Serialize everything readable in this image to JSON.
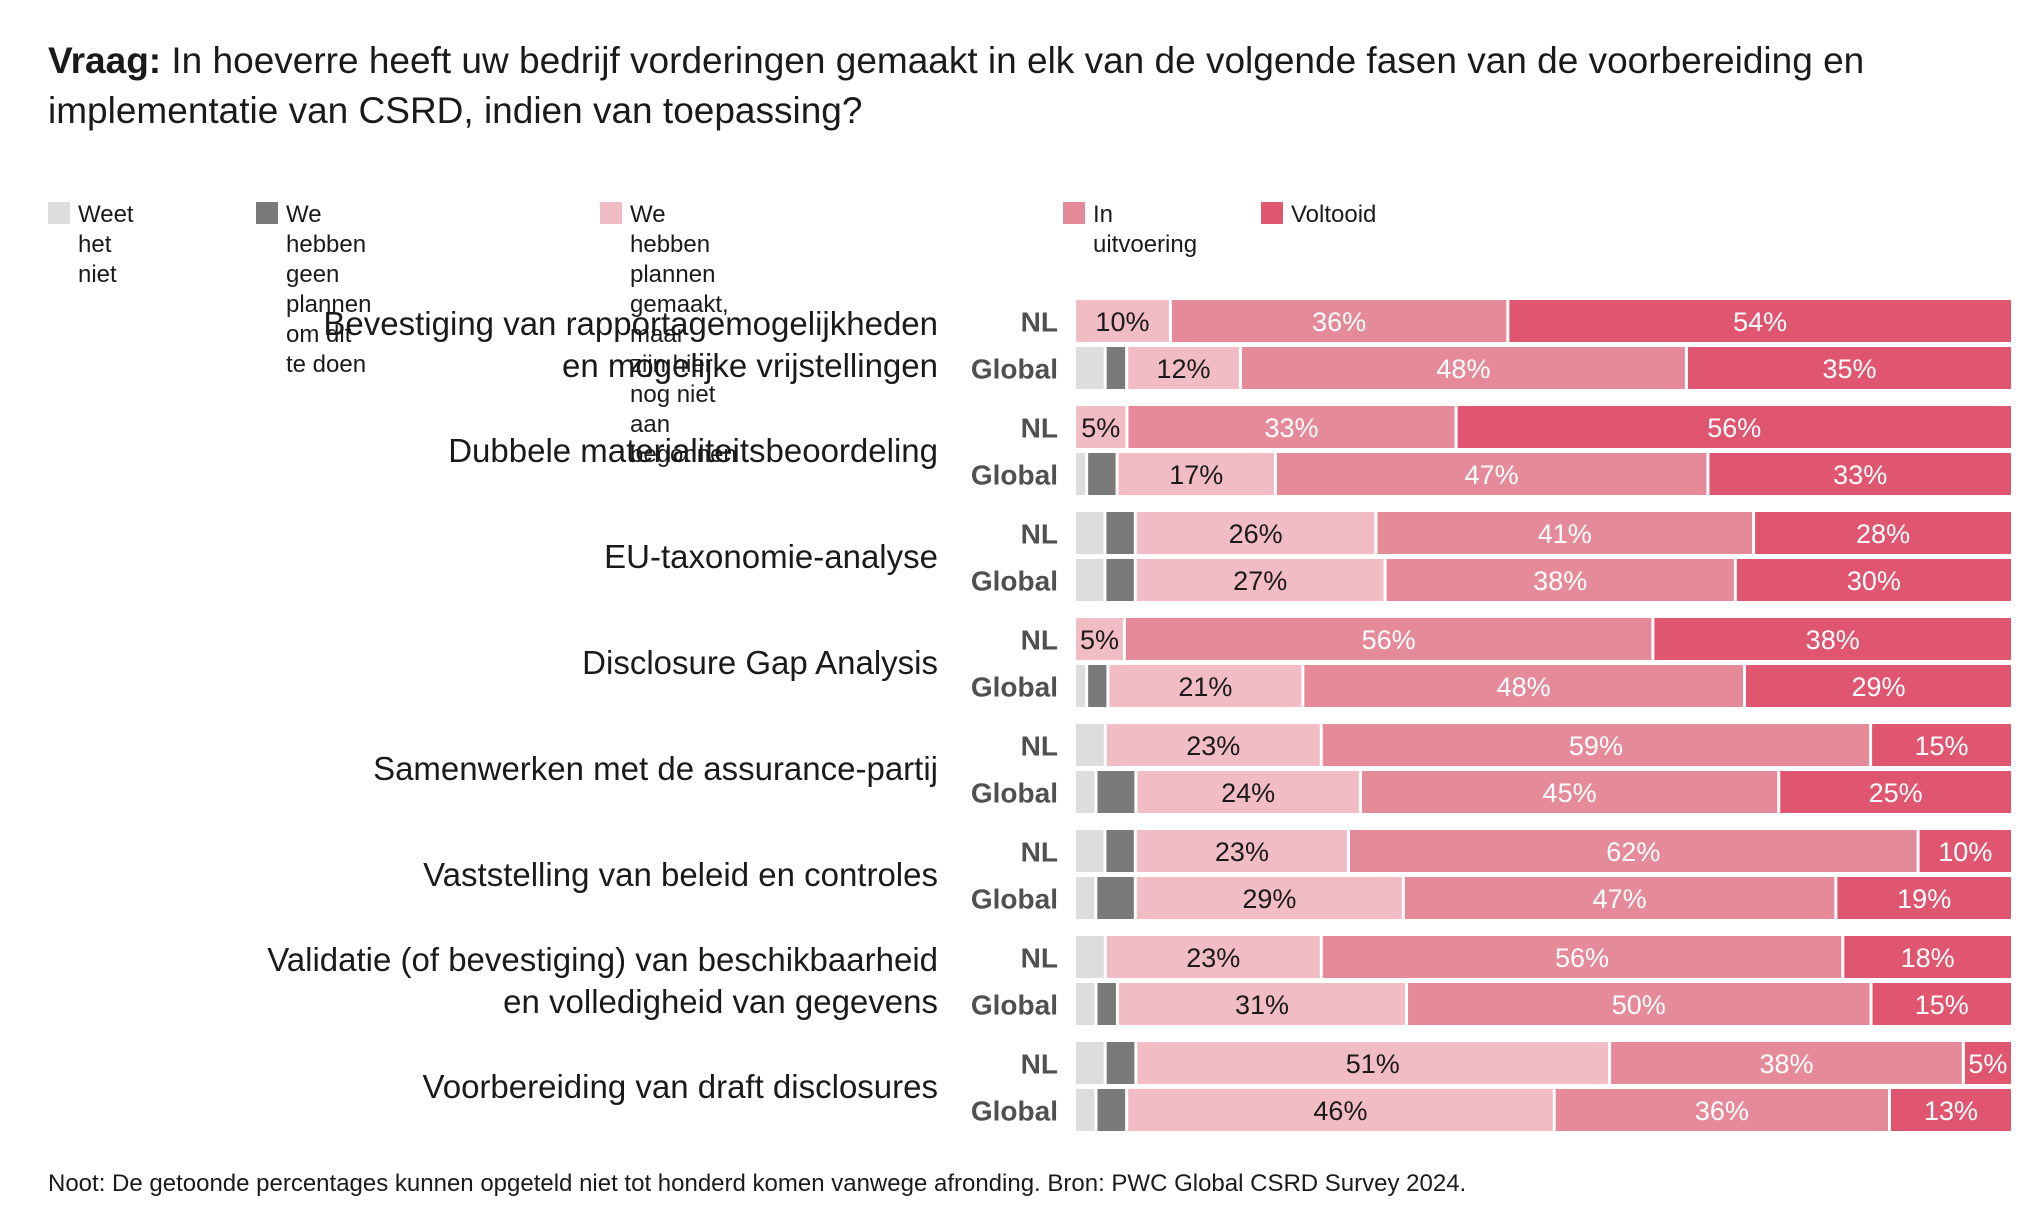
{
  "title": {
    "bold": "Vraag:",
    "text": " In hoeverre heeft uw bedrijf vorderingen gemaakt in elk van de volgende fasen van de voorbereiding en implementatie van CSRD, indien van toepassing?"
  },
  "legend": [
    {
      "label": "Weet het niet",
      "color": "#dddddd"
    },
    {
      "label": "We hebben geen plannen\nom dit te doen",
      "color": "#7a7a7a"
    },
    {
      "label": "We hebben plannen gemaakt, maar\nzijn hier nog niet aan begonnen",
      "color": "#f2bcc5"
    },
    {
      "label": "In uitvoering",
      "color": "#e58a99"
    },
    {
      "label": "Voltooid",
      "color": "#e0556f"
    }
  ],
  "footnote": "Noot: De getoonde percentages kunnen opgeteld niet tot honderd komen vanwege afronding. Bron: PWC Global CSRD Survey 2024.",
  "chart_data": {
    "type": "bar",
    "orientation": "horizontal",
    "stacked": true,
    "value_format": "percent",
    "segments": [
      "Weet het niet",
      "We hebben geen plannen om dit te doen",
      "We hebben plannen gemaakt, maar zijn hier nog niet aan begonnen",
      "In uitvoering",
      "Voltooid"
    ],
    "categories": [
      {
        "label": "Bevestiging van rapportagemogelijkheden\nen mogelijke vrijstellingen",
        "rows": [
          {
            "group": "NL",
            "values": [
              0,
              0,
              10,
              36,
              54
            ],
            "labels": [
              "",
              "",
              "10%",
              "36%",
              "54%"
            ]
          },
          {
            "group": "Global",
            "values": [
              3,
              2,
              12,
              48,
              35
            ],
            "labels": [
              "",
              "",
              "12%",
              "48%",
              "35%"
            ]
          }
        ]
      },
      {
        "label": "Dubbele materialiteitsbeoordeling",
        "rows": [
          {
            "group": "NL",
            "values": [
              0,
              0,
              5,
              33,
              56
            ],
            "labels": [
              "",
              "",
              "5%",
              "33%",
              "56%"
            ]
          },
          {
            "group": "Global",
            "values": [
              1,
              3,
              17,
              47,
              33
            ],
            "labels": [
              "",
              "",
              "17%",
              "47%",
              "33%"
            ]
          }
        ]
      },
      {
        "label": "EU-taxonomie-analyse",
        "rows": [
          {
            "group": "NL",
            "values": [
              3,
              3,
              26,
              41,
              28
            ],
            "labels": [
              "",
              "",
              "26%",
              "41%",
              "28%"
            ]
          },
          {
            "group": "Global",
            "values": [
              3,
              3,
              27,
              38,
              30
            ],
            "labels": [
              "",
              "",
              "27%",
              "38%",
              "30%"
            ]
          }
        ]
      },
      {
        "label": "Disclosure Gap Analysis",
        "rows": [
          {
            "group": "NL",
            "values": [
              0,
              0,
              5,
              56,
              38
            ],
            "labels": [
              "",
              "",
              "5%",
              "56%",
              "38%"
            ]
          },
          {
            "group": "Global",
            "values": [
              1,
              2,
              21,
              48,
              29
            ],
            "labels": [
              "",
              "",
              "21%",
              "48%",
              "29%"
            ]
          }
        ]
      },
      {
        "label": "Samenwerken met de assurance-partij",
        "rows": [
          {
            "group": "NL",
            "values": [
              3,
              0,
              23,
              59,
              15
            ],
            "labels": [
              "",
              "",
              "23%",
              "59%",
              "15%"
            ]
          },
          {
            "group": "Global",
            "values": [
              2,
              4,
              24,
              45,
              25
            ],
            "labels": [
              "",
              "",
              "24%",
              "45%",
              "25%"
            ]
          }
        ]
      },
      {
        "label": "Vaststelling van beleid en controles",
        "rows": [
          {
            "group": "NL",
            "values": [
              3,
              3,
              23,
              62,
              10
            ],
            "labels": [
              "",
              "",
              "23%",
              "62%",
              "10%"
            ]
          },
          {
            "group": "Global",
            "values": [
              2,
              4,
              29,
              47,
              19
            ],
            "labels": [
              "",
              "",
              "29%",
              "47%",
              "19%"
            ]
          }
        ]
      },
      {
        "label": "Validatie (of bevestiging) van beschikbaarheid\nen volledigheid van gegevens",
        "rows": [
          {
            "group": "NL",
            "values": [
              3,
              0,
              23,
              56,
              18
            ],
            "labels": [
              "",
              "",
              "23%",
              "56%",
              "18%"
            ]
          },
          {
            "group": "Global",
            "values": [
              2,
              2,
              31,
              50,
              15
            ],
            "labels": [
              "",
              "",
              "31%",
              "50%",
              "15%"
            ]
          }
        ]
      },
      {
        "label": "Voorbereiding van draft disclosures",
        "rows": [
          {
            "group": "NL",
            "values": [
              3,
              3,
              51,
              38,
              5
            ],
            "labels": [
              "",
              "",
              "51%",
              "38%",
              "5%"
            ]
          },
          {
            "group": "Global",
            "values": [
              2,
              3,
              46,
              36,
              13
            ],
            "labels": [
              "",
              "",
              "46%",
              "36%",
              "13%"
            ]
          }
        ]
      }
    ]
  }
}
